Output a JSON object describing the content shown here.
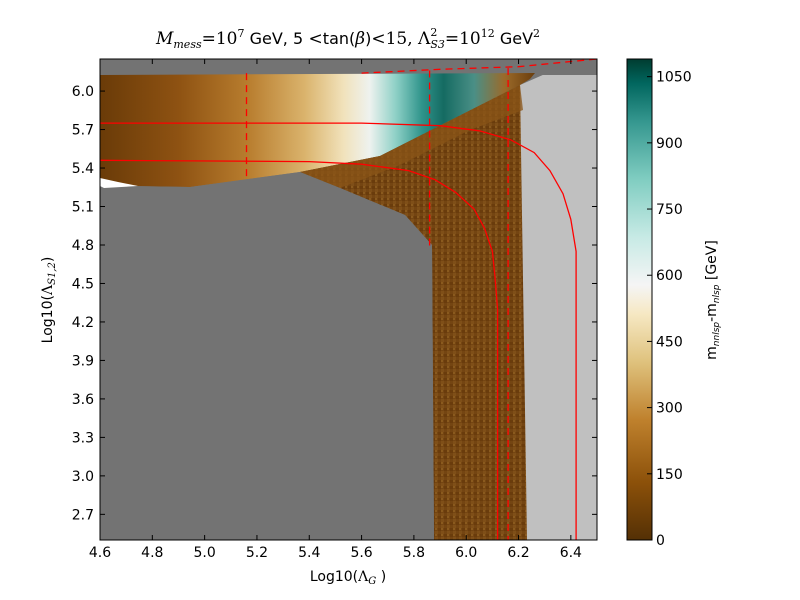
{
  "chart_data": {
    "type": "heatmap",
    "title": "M_{mess} = 10^7 GeV, 5 < tan(β) < 15, Λ²_{S3} = 10^12 GeV²",
    "title_parts": {
      "m": "M",
      "m_sub": "mess",
      "eq1": "=10",
      "exp1": "7",
      "gev1": "GeV, 5",
      "lt1": "<",
      "tanb": "tan(",
      "beta": "β",
      "tanb_close": ")",
      "lt2": "<",
      "fifteen": "15,",
      "lambda": "Λ",
      "lam_sup": "2",
      "lam_sub": "S3",
      "eq2": "=10",
      "exp2": "12",
      "gev2": "GeV",
      "gev2_sup": "2"
    },
    "xlabel": "Log10(Λ_G )",
    "xlabel_parts": {
      "pre": "Log10(",
      "lam": "Λ",
      "sub": "G",
      "post": " )"
    },
    "ylabel": "Log10(Λ_{S1,2})",
    "ylabel_parts": {
      "pre": "Log10(",
      "lam": "Λ",
      "sub": "S1,2",
      "post": ")"
    },
    "xlim": [
      4.6,
      6.5
    ],
    "ylim": [
      2.5,
      6.25
    ],
    "xticks": [
      "4.6",
      "4.8",
      "5.0",
      "5.2",
      "5.4",
      "5.6",
      "5.8",
      "6.0",
      "6.2",
      "6.4"
    ],
    "yticks": [
      "2.7",
      "3.0",
      "3.3",
      "3.6",
      "3.9",
      "4.2",
      "4.5",
      "4.8",
      "5.1",
      "5.4",
      "5.7",
      "6.0"
    ],
    "colorbar": {
      "label": "m_{nnlsp}-m_{nlsp} [GeV]",
      "label_parts": {
        "m1": "m",
        "sub1": "nnlsp",
        "dash": "-m",
        "sub2": "nlsp",
        "unit": " [GeV]"
      },
      "range": [
        0,
        1090
      ],
      "ticks": [
        "0",
        "150",
        "300",
        "450",
        "600",
        "750",
        "900",
        "1050"
      ],
      "colormap": "BrBG"
    },
    "regions": [
      {
        "name": "excluded",
        "color": "#737373"
      },
      {
        "name": "no-solution",
        "color": "#c0c0c0"
      },
      {
        "name": "no-data",
        "color": "#ffffff"
      }
    ],
    "solid_contours": [
      {
        "points": [
          [
            4.6,
            5.75
          ],
          [
            5.6,
            5.75
          ],
          [
            5.9,
            5.73
          ],
          [
            6.05,
            5.69
          ],
          [
            6.17,
            5.62
          ],
          [
            6.26,
            5.52
          ],
          [
            6.32,
            5.38
          ],
          [
            6.37,
            5.2
          ],
          [
            6.4,
            5.0
          ],
          [
            6.42,
            4.75
          ],
          [
            6.42,
            4.4
          ],
          [
            6.42,
            3.5
          ],
          [
            6.42,
            2.5
          ]
        ]
      },
      {
        "points": [
          [
            4.6,
            5.46
          ],
          [
            5.4,
            5.45
          ],
          [
            5.6,
            5.43
          ],
          [
            5.78,
            5.38
          ],
          [
            5.88,
            5.31
          ],
          [
            5.96,
            5.21
          ],
          [
            6.03,
            5.08
          ],
          [
            6.07,
            4.93
          ],
          [
            6.1,
            4.75
          ],
          [
            6.11,
            4.55
          ],
          [
            6.12,
            4.3
          ],
          [
            6.12,
            3.5
          ],
          [
            6.12,
            2.5
          ]
        ]
      }
    ],
    "dashed_contours": [
      {
        "points": [
          [
            5.16,
            6.14
          ],
          [
            5.16,
            5.3
          ]
        ]
      },
      {
        "points": [
          [
            5.86,
            6.16
          ],
          [
            5.86,
            4.78
          ]
        ]
      },
      {
        "points": [
          [
            6.16,
            6.18
          ],
          [
            6.16,
            2.5
          ]
        ]
      },
      {
        "points": [
          [
            5.6,
            6.14
          ],
          [
            5.9,
            6.17
          ],
          [
            6.2,
            6.19
          ],
          [
            6.35,
            6.22
          ],
          [
            6.5,
            6.25
          ]
        ]
      }
    ]
  }
}
